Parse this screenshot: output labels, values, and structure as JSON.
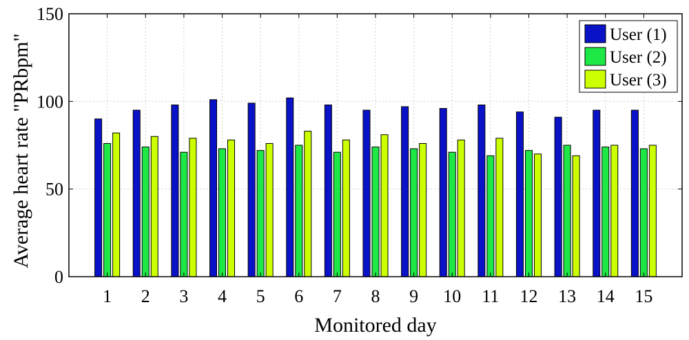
{
  "chart_data": {
    "type": "bar",
    "title": "",
    "xlabel": "Monitored day",
    "ylabel": "Average heart rate \"PRbpm\"",
    "ylim": [
      0,
      150
    ],
    "yticks": [
      "0",
      "50",
      "100",
      "150"
    ],
    "categories": [
      "1",
      "2",
      "3",
      "4",
      "5",
      "6",
      "7",
      "8",
      "9",
      "10",
      "11",
      "12",
      "13",
      "14",
      "15"
    ],
    "grid": true,
    "legend_position": "top-right",
    "series": [
      {
        "name": "User (1)",
        "color": "#0a12c8",
        "values": [
          90,
          95,
          98,
          101,
          99,
          102,
          98,
          95,
          97,
          96,
          98,
          94,
          91,
          95,
          95
        ]
      },
      {
        "name": "User (2)",
        "color": "#1ee845",
        "values": [
          76,
          74,
          71,
          73,
          72,
          75,
          71,
          74,
          73,
          71,
          69,
          72,
          75,
          74,
          73
        ]
      },
      {
        "name": "User (3)",
        "color": "#ccff00",
        "values": [
          82,
          80,
          79,
          78,
          76,
          83,
          78,
          81,
          76,
          78,
          79,
          70,
          69,
          75,
          75
        ]
      }
    ]
  }
}
